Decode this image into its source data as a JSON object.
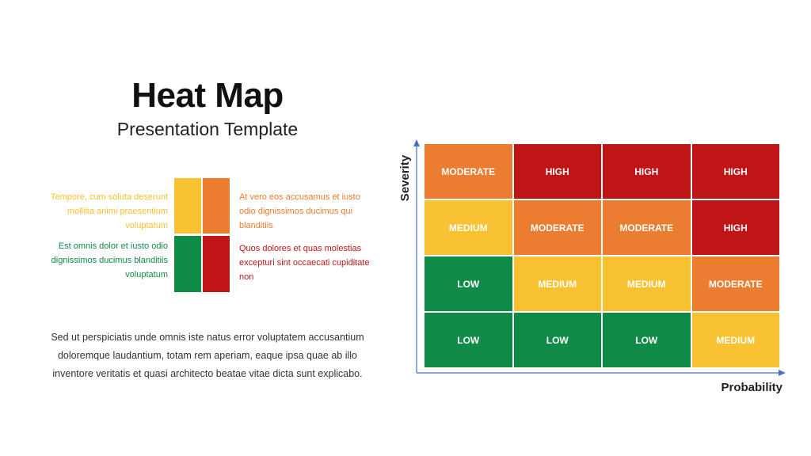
{
  "title": "Heat Map",
  "subtitle": "Presentation Template",
  "legend": {
    "top_left": "Tempore, cum soluta deserunt mollitia animi praesentium voluptatum",
    "bottom_left": "Est omnis dolor et iusto odio dignissimos ducimus blanditiis voluptatum",
    "top_right": "At vero eos accusamus et iusto odio dignissimos ducimus qui blanditiis",
    "bottom_right": "Quos dolores et quas molestias excepturi sint occaecati cupiditate non"
  },
  "paragraph": "Sed ut perspiciatis unde omnis iste natus error voluptatem accusantium doloremque laudantium, totam rem aperiam, eaque ipsa quae ab illo inventore veritatis et quasi architecto beatae vitae dicta sunt explicabo.",
  "colors": {
    "yellow": "#F9C232",
    "orange": "#EC7C30",
    "green": "#0F8B47",
    "red": "#C01517",
    "axis": "#4472C4"
  },
  "heatmap": {
    "y_axis_label": "Severity",
    "x_axis_label": "Probability",
    "rows": [
      [
        {
          "label": "MODERATE",
          "color": "orange"
        },
        {
          "label": "HIGH",
          "color": "red"
        },
        {
          "label": "HIGH",
          "color": "red"
        },
        {
          "label": "HIGH",
          "color": "red"
        }
      ],
      [
        {
          "label": "MEDIUM",
          "color": "yellow"
        },
        {
          "label": "MODERATE",
          "color": "orange"
        },
        {
          "label": "MODERATE",
          "color": "orange"
        },
        {
          "label": "HIGH",
          "color": "red"
        }
      ],
      [
        {
          "label": "LOW",
          "color": "green"
        },
        {
          "label": "MEDIUM",
          "color": "yellow"
        },
        {
          "label": "MEDIUM",
          "color": "yellow"
        },
        {
          "label": "MODERATE",
          "color": "orange"
        }
      ],
      [
        {
          "label": "LOW",
          "color": "green"
        },
        {
          "label": "LOW",
          "color": "green"
        },
        {
          "label": "LOW",
          "color": "green"
        },
        {
          "label": "MEDIUM",
          "color": "yellow"
        }
      ]
    ]
  }
}
